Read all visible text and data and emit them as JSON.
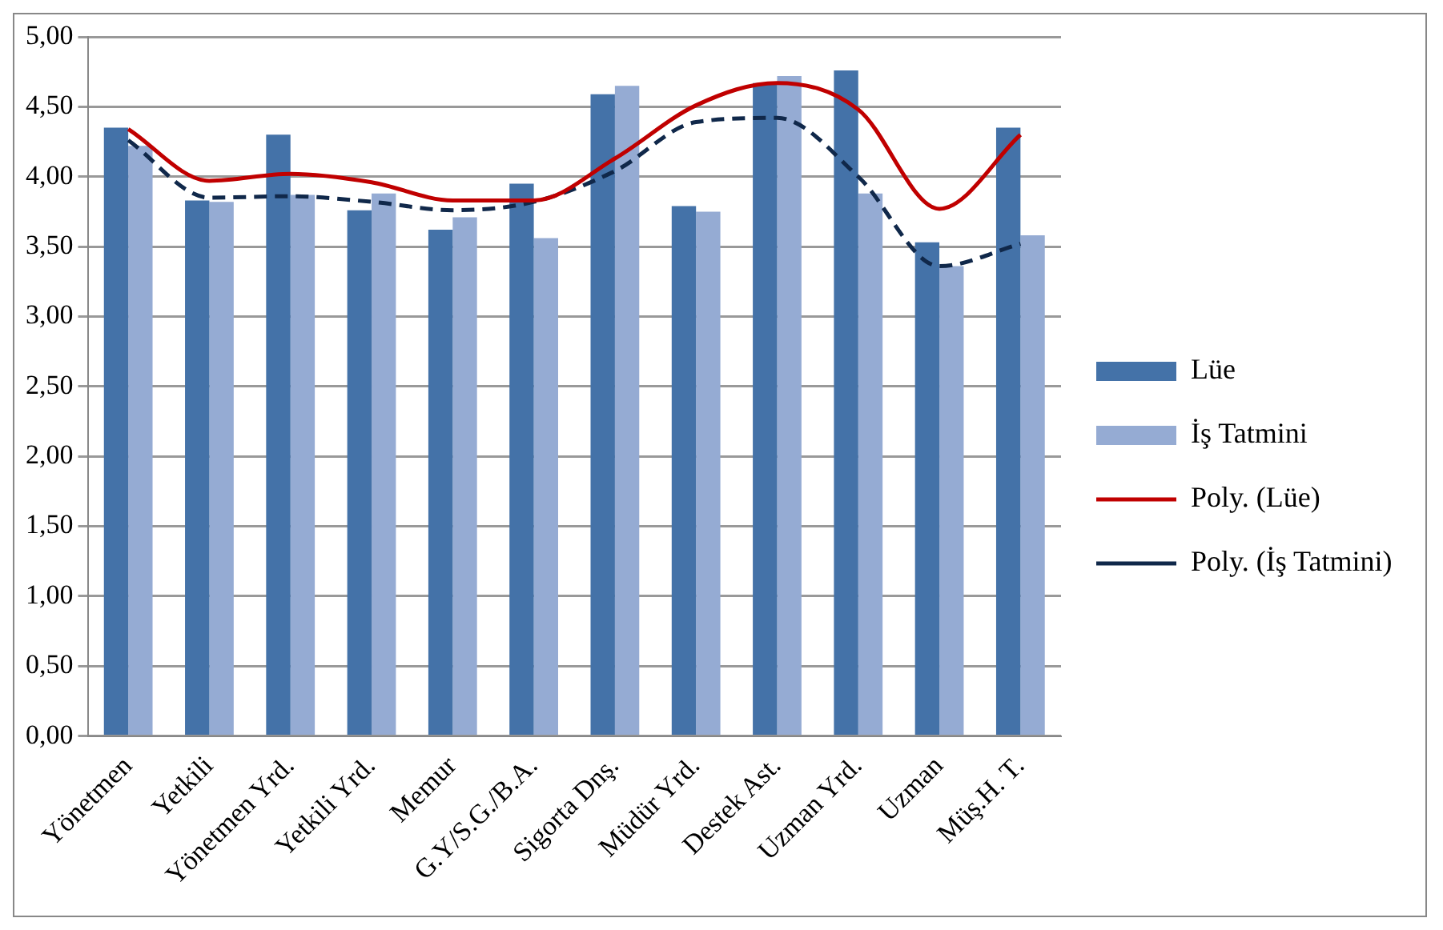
{
  "chart_data": {
    "type": "bar",
    "categories": [
      "Yönetmen",
      "Yetkili",
      "Yönetmen Yrd.",
      "Yetkili Yrd.",
      "Memur",
      "G.Y/S.G./B.A.",
      "Sigorta Dnş.",
      "Müdür Yrd.",
      "Destek Ast.",
      "Uzman Yrd.",
      "Uzman",
      "Müş.H. T."
    ],
    "series": [
      {
        "name": "Lüe",
        "color": "#4472a8",
        "values": [
          4.35,
          3.83,
          4.3,
          3.76,
          3.62,
          3.95,
          4.59,
          3.79,
          4.67,
          4.76,
          3.53,
          4.35
        ]
      },
      {
        "name": "İş Tatmini",
        "color": "#95abd3",
        "values": [
          4.22,
          3.82,
          3.87,
          3.88,
          3.71,
          3.56,
          4.65,
          3.75,
          4.72,
          3.88,
          3.36,
          3.58
        ]
      },
      {
        "name": "Poly. (Lüe)",
        "type": "line",
        "color": "#c00000",
        "line_style": "solid",
        "values": [
          4.34,
          3.97,
          4.02,
          3.96,
          3.83,
          3.83,
          4.13,
          4.51,
          4.67,
          4.48,
          3.77,
          4.3
        ]
      },
      {
        "name": "Poly. (İş Tatmini)",
        "type": "line",
        "color": "#10284a",
        "line_style": "dashed",
        "values": [
          4.26,
          3.85,
          3.86,
          3.82,
          3.76,
          3.82,
          4.04,
          4.39,
          4.42,
          4.0,
          3.36,
          3.52
        ]
      }
    ],
    "ylim": [
      0,
      5
    ],
    "yticks": [
      {
        "value": 0,
        "label": "0,00"
      },
      {
        "value": 0.5,
        "label": "0,50"
      },
      {
        "value": 1,
        "label": "1,00"
      },
      {
        "value": 1.5,
        "label": "1,50"
      },
      {
        "value": 2,
        "label": "2,00"
      },
      {
        "value": 2.5,
        "label": "2,50"
      },
      {
        "value": 3,
        "label": "3,00"
      },
      {
        "value": 3.5,
        "label": "3,50"
      },
      {
        "value": 4,
        "label": "4,00"
      },
      {
        "value": 4.5,
        "label": "4,50"
      },
      {
        "value": 5,
        "label": "5,00"
      }
    ],
    "grid": "y",
    "legend": "right",
    "marker": "none"
  }
}
